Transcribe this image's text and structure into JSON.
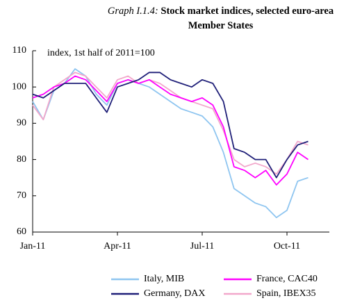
{
  "chart_data": {
    "type": "line",
    "title_prefix": "Graph I.1.4:",
    "title": "Stock market indices, selected euro-area Member States",
    "annotation": "index, 1st half of 2011=100",
    "categories": [
      "Jan-11",
      null,
      null,
      null,
      null,
      null,
      null,
      null,
      "Apr-11",
      null,
      null,
      null,
      null,
      null,
      null,
      null,
      "Jul-11",
      null,
      null,
      null,
      null,
      null,
      null,
      null,
      "Oct-11",
      null,
      null,
      null
    ],
    "series": [
      {
        "name": "Italy, MIB",
        "color": "#8ec5f0",
        "values": [
          96,
          91,
          99,
          101,
          105,
          103,
          98,
          95,
          101,
          102,
          101,
          100,
          98,
          96,
          94,
          93,
          92,
          89,
          82,
          72,
          70,
          68,
          67,
          64,
          66,
          74,
          75,
          null
        ]
      },
      {
        "name": "France, CAC40",
        "color": "#ff00ff",
        "values": [
          97,
          98,
          100,
          101,
          103,
          102,
          99,
          96,
          101,
          102,
          101,
          102,
          100,
          98,
          97,
          96,
          97,
          95,
          89,
          78,
          77,
          75,
          77,
          73,
          76,
          82,
          80,
          null
        ]
      },
      {
        "name": "Germany, DAX",
        "color": "#1f1f78",
        "values": [
          98,
          97,
          99,
          101,
          101,
          101,
          97,
          93,
          100,
          101,
          102,
          104,
          104,
          102,
          101,
          100,
          102,
          101,
          96,
          83,
          82,
          80,
          80,
          75,
          80,
          84,
          85,
          null
        ]
      },
      {
        "name": "Spain, IBEX35",
        "color": "#f2a7cb",
        "values": [
          95,
          91,
          100,
          102,
          104,
          103,
          100,
          97,
          102,
          103,
          101,
          102,
          101,
          99,
          97,
          96,
          95,
          94,
          88,
          80,
          78,
          79,
          78,
          76,
          80,
          85,
          84,
          null
        ]
      }
    ],
    "ylim": [
      60,
      110
    ],
    "yticks": [
      60,
      70,
      80,
      90,
      100,
      110
    ],
    "grid": false
  }
}
